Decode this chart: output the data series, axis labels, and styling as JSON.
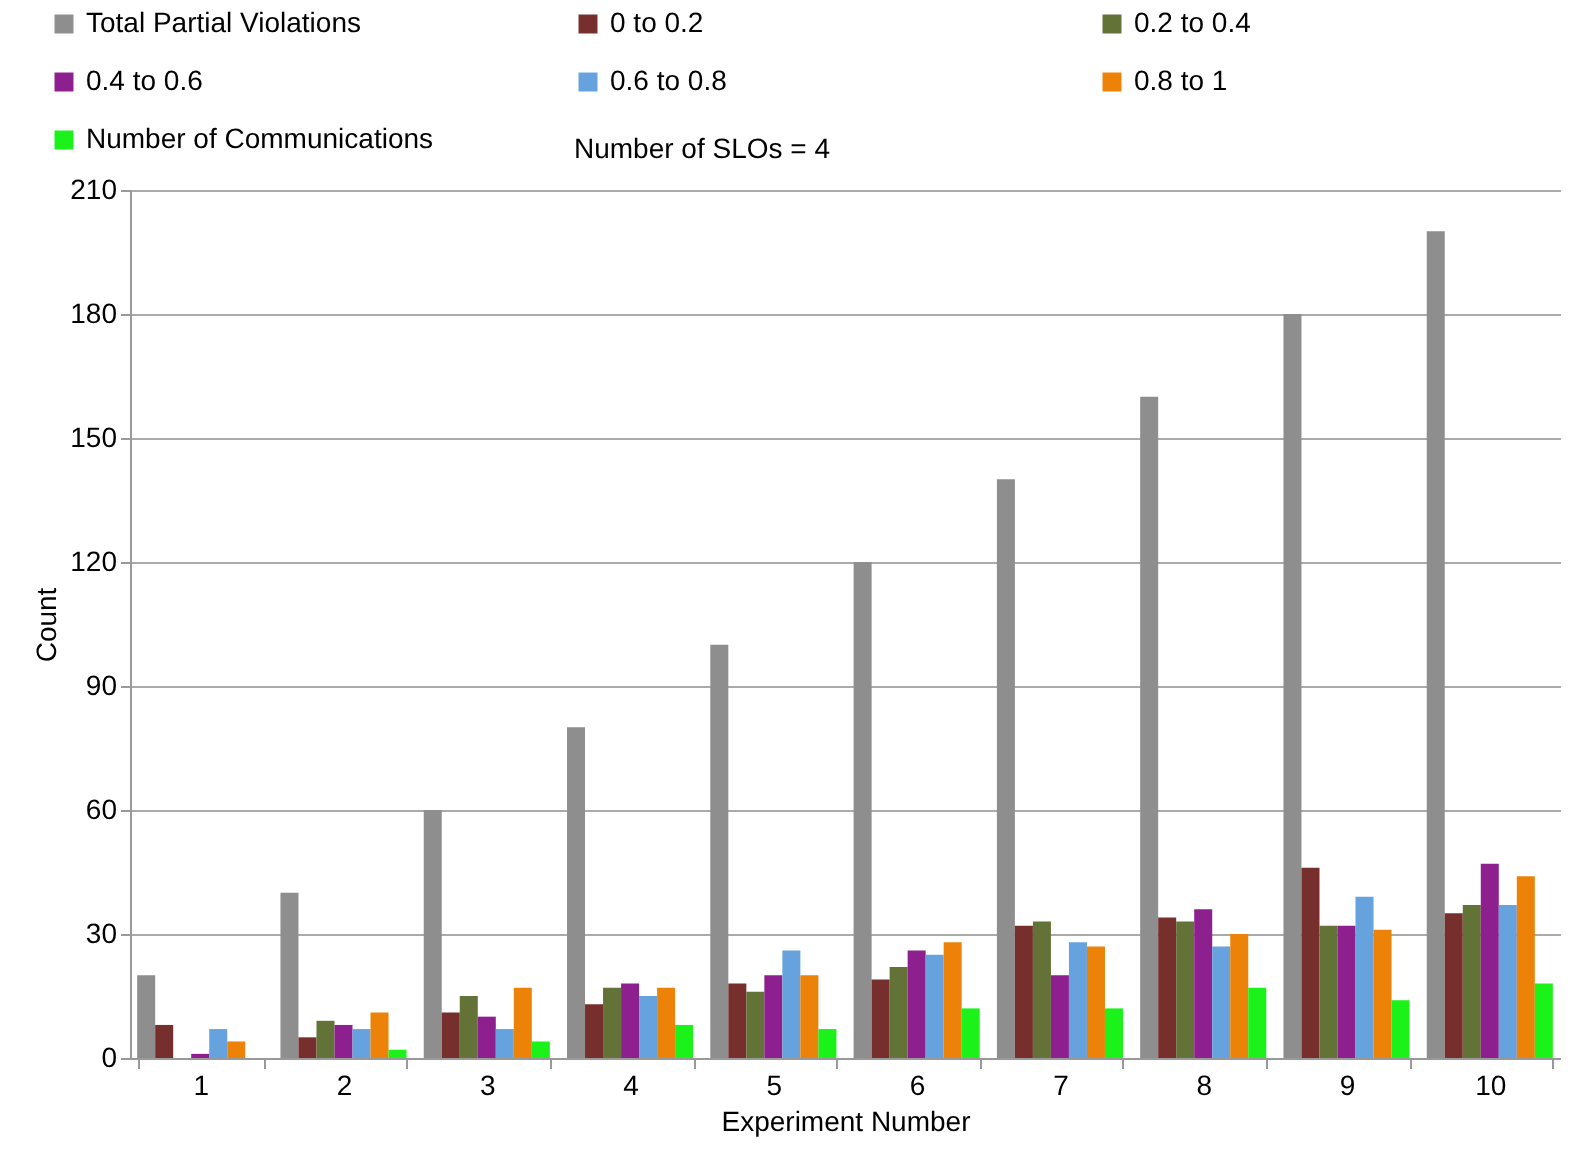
{
  "chart_data": {
    "type": "bar",
    "xlabel": "Experiment Number",
    "ylabel": "Count",
    "categories": [
      "1",
      "2",
      "3",
      "4",
      "5",
      "6",
      "7",
      "8",
      "9",
      "10"
    ],
    "ylim": [
      0,
      210
    ],
    "yticks": [
      0,
      30,
      60,
      90,
      120,
      150,
      180,
      210
    ],
    "grid": "y",
    "legend": "top",
    "annotations": [
      "Number of SLOs = 4"
    ],
    "series": [
      {
        "name": "Total Partial Violations",
        "color": "#8e8e8e",
        "values": [
          20,
          40,
          60,
          80,
          100,
          120,
          140,
          160,
          180,
          200
        ]
      },
      {
        "name": "0 to 0.2",
        "color": "#772f2d",
        "values": [
          8,
          5,
          11,
          13,
          18,
          19,
          32,
          34,
          46,
          35
        ]
      },
      {
        "name": "0.2 to 0.4",
        "color": "#637236",
        "values": [
          0,
          9,
          15,
          17,
          16,
          22,
          33,
          33,
          32,
          37
        ]
      },
      {
        "name": "0.4 to 0.6",
        "color": "#8e1f8e",
        "values": [
          1,
          8,
          10,
          18,
          20,
          26,
          20,
          36,
          32,
          47
        ]
      },
      {
        "name": "0.6 to 0.8",
        "color": "#66a2dd",
        "values": [
          7,
          7,
          7,
          15,
          26,
          25,
          28,
          27,
          39,
          37
        ]
      },
      {
        "name": "0.8 to 1",
        "color": "#ed8208",
        "values": [
          4,
          11,
          17,
          17,
          20,
          28,
          27,
          30,
          31,
          44
        ]
      },
      {
        "name": "Number of Communications",
        "color": "#1af21a",
        "values": [
          0,
          2,
          4,
          8,
          7,
          12,
          12,
          17,
          14,
          18
        ]
      }
    ]
  }
}
